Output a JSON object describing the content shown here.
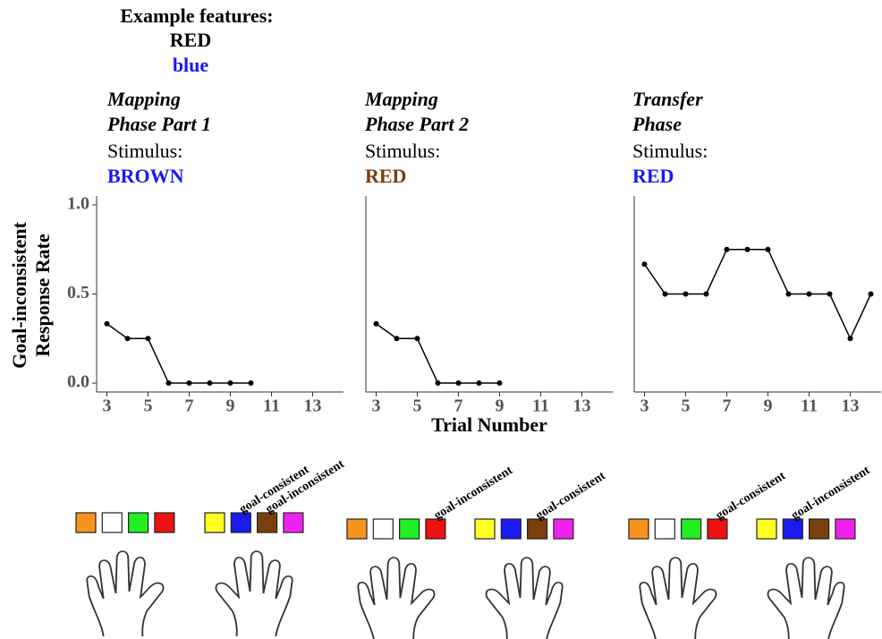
{
  "example": {
    "title": "Example features:",
    "items": [
      {
        "text": "RED",
        "color": "#000000"
      },
      {
        "text": "blue",
        "color": "#1a1aee"
      }
    ]
  },
  "shared": {
    "ylabel": [
      "Goal-inconsistent",
      "Response Rate"
    ],
    "xlabel": "Trial Number"
  },
  "chart_data": [
    {
      "type": "line",
      "title": [
        "Mapping",
        "Phase Part 1"
      ],
      "stimulus_label": "Stimulus:",
      "stimulus": "BROWN",
      "stimulus_color": "#1a1aee",
      "x": [
        3,
        4,
        5,
        6,
        7,
        8,
        9,
        10
      ],
      "values": [
        0.333,
        0.25,
        0.25,
        0,
        0,
        0,
        0,
        0
      ],
      "color": "#000000",
      "xlim": [
        2.5,
        14.5
      ],
      "xticks": [
        3,
        5,
        7,
        9,
        11,
        13
      ],
      "ylim": [
        -0.05,
        1.05
      ],
      "yticks": [
        {
          "value": 0,
          "label": "0.0"
        },
        {
          "value": 0.5,
          "label": "0.5"
        },
        {
          "value": 1,
          "label": "1.0"
        }
      ],
      "annotations": [
        "goal-consistent",
        "goal-inconsistent"
      ]
    },
    {
      "type": "line",
      "title": [
        "Mapping",
        "Phase Part 2"
      ],
      "stimulus_label": "Stimulus:",
      "stimulus": "RED",
      "stimulus_color": "#7a3f0a",
      "x": [
        3,
        4,
        5,
        6,
        7,
        8,
        9
      ],
      "values": [
        0.333,
        0.25,
        0.25,
        0,
        0,
        0,
        0
      ],
      "color": "#000000",
      "xlim": [
        2.5,
        14.5
      ],
      "xticks": [
        3,
        5,
        7,
        9,
        11,
        13
      ],
      "ylim": [
        -0.05,
        1.05
      ],
      "annotations": [
        "goal-inconsistent",
        "goal-consistent"
      ]
    },
    {
      "type": "line",
      "title": [
        "Transfer",
        "Phase"
      ],
      "stimulus_label": "Stimulus:",
      "stimulus": "RED",
      "stimulus_color": "#1a1aee",
      "x": [
        3,
        4,
        5,
        6,
        7,
        8,
        9,
        10,
        11,
        12,
        13,
        14
      ],
      "values": [
        0.667,
        0.5,
        0.5,
        0.5,
        0.75,
        0.75,
        0.75,
        0.5,
        0.5,
        0.5,
        0.25,
        0.5
      ],
      "color": "#000000",
      "xlim": [
        2.5,
        14.5
      ],
      "xticks": [
        3,
        5,
        7,
        9,
        11,
        13
      ],
      "ylim": [
        -0.05,
        1.05
      ],
      "annotations": [
        "goal-consistent",
        "goal-inconsistent"
      ]
    }
  ]
}
